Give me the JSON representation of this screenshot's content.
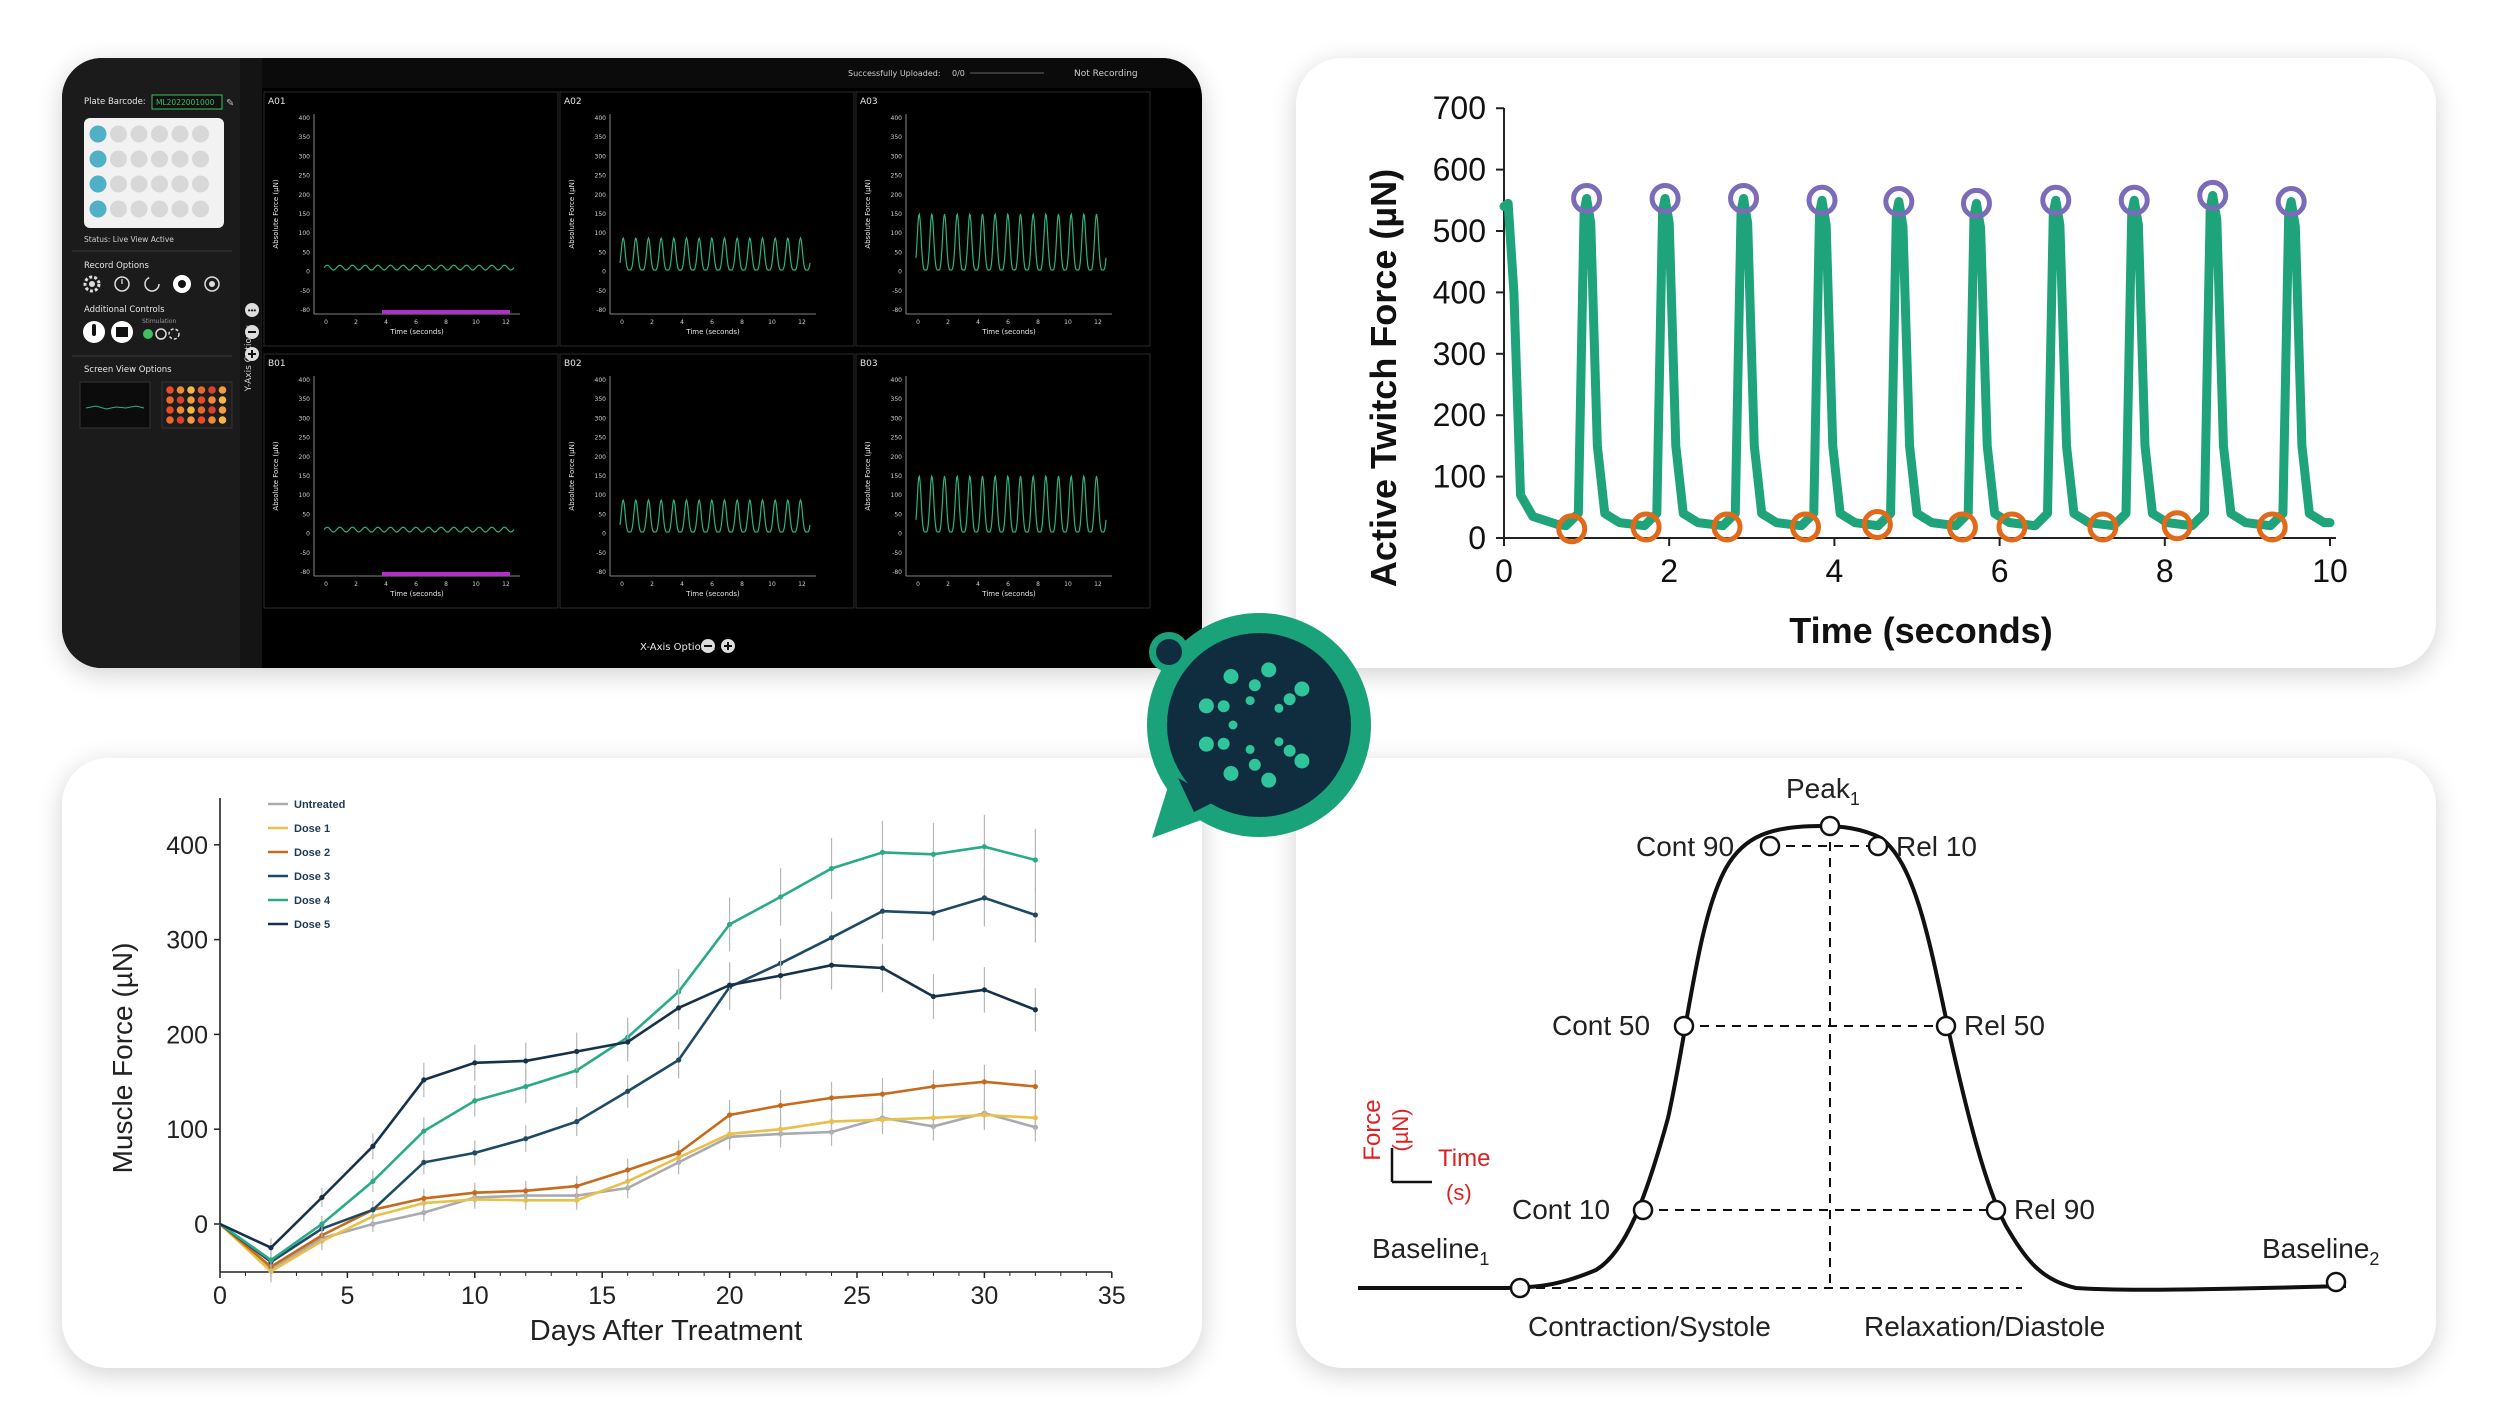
{
  "app": {
    "plate_barcode_label": "Plate Barcode:",
    "plate_barcode_value": "ML2022001000",
    "status_text": "Status: Live View Active",
    "upload_text": "Successfully Uploaded:",
    "upload_count": "0/0",
    "recording_status": "Not Recording",
    "record_options_label": "Record Options",
    "additional_controls_label": "Additional Controls",
    "stimulation_label": "Stimulation",
    "screen_view_label": "Screen View Options",
    "y_axis_options_label": "Y-Axis Options:",
    "x_axis_options_label": "X-Axis Options:",
    "wells": [
      {
        "id": "A01",
        "amp": 6
      },
      {
        "id": "A02",
        "amp": 40
      },
      {
        "id": "A03",
        "amp": 70
      },
      {
        "id": "B01",
        "amp": 6
      },
      {
        "id": "B02",
        "amp": 40
      },
      {
        "id": "B03",
        "amp": 70
      }
    ],
    "mini_plot": {
      "ylabel": "Absolute Force (µN)",
      "xlabel": "Time (seconds)",
      "yticks": [
        "400",
        "350",
        "300",
        "250",
        "200",
        "150",
        "100",
        "50",
        "0",
        "-50",
        "-80"
      ],
      "xticks": [
        "0",
        "2",
        "4",
        "6",
        "8",
        "10",
        "12"
      ]
    },
    "colors": {
      "trace": "#2db37a",
      "stim": "#b030c8",
      "well_active": "#4fb0c6",
      "well_idle": "#d8d8d8"
    }
  },
  "twitch_chart": {
    "chart_data": {
      "type": "line",
      "ylabel": "Active Twitch Force (µN)",
      "xlabel": "Time (seconds)",
      "ylim": [
        0,
        700
      ],
      "xlim": [
        0,
        10
      ],
      "yticks": [
        "0",
        "100",
        "200",
        "300",
        "400",
        "500",
        "600",
        "700"
      ],
      "xticks": [
        "0",
        "2",
        "4",
        "6",
        "8",
        "10"
      ],
      "peaks": [
        [
          1.0,
          553
        ],
        [
          1.95,
          553
        ],
        [
          2.9,
          553
        ],
        [
          3.85,
          550
        ],
        [
          4.78,
          548
        ],
        [
          5.72,
          545
        ],
        [
          6.68,
          550
        ],
        [
          7.63,
          550
        ],
        [
          8.58,
          558
        ],
        [
          9.53,
          548
        ]
      ],
      "troughs": [
        [
          0.82,
          15
        ],
        [
          1.72,
          18
        ],
        [
          2.7,
          18
        ],
        [
          3.65,
          18
        ],
        [
          4.52,
          22
        ],
        [
          5.55,
          18
        ],
        [
          6.15,
          18
        ],
        [
          7.25,
          18
        ],
        [
          8.15,
          20
        ],
        [
          9.3,
          18
        ]
      ],
      "line_color": "#1fa37a",
      "peak_marker_color": "#7b6bb8",
      "trough_marker_color": "#e06a1a"
    }
  },
  "dose_chart": {
    "chart_data": {
      "type": "line",
      "ylabel": "Muscle Force (µN)",
      "xlabel": "Days After Treatment",
      "xlim": [
        0,
        35
      ],
      "ylim": [
        -50,
        420
      ],
      "xticks": [
        "0",
        "5",
        "10",
        "15",
        "20",
        "25",
        "30",
        "35"
      ],
      "yticks": [
        "0",
        "100",
        "200",
        "300",
        "400"
      ],
      "x": [
        0,
        2,
        4,
        6,
        8,
        10,
        12,
        14,
        16,
        18,
        20,
        22,
        24,
        26,
        28,
        30,
        32
      ],
      "series": [
        {
          "name": "Untreated",
          "color": "#a9aab0",
          "values": [
            0,
            -48,
            -15,
            0,
            12,
            28,
            30,
            30,
            38,
            65,
            92,
            95,
            97,
            112,
            103,
            117,
            102
          ]
        },
        {
          "name": "Dose 1",
          "color": "#e8c04a",
          "values": [
            0,
            -50,
            -18,
            8,
            22,
            26,
            25,
            25,
            45,
            70,
            95,
            100,
            108,
            110,
            112,
            115,
            112
          ]
        },
        {
          "name": "Dose 2",
          "color": "#c76a1c",
          "values": [
            0,
            -45,
            -12,
            15,
            27,
            33,
            35,
            40,
            57,
            75,
            115,
            125,
            133,
            137,
            145,
            150,
            145
          ]
        },
        {
          "name": "Dose 3",
          "color": "#1e4a63",
          "values": [
            0,
            -40,
            -5,
            15,
            65,
            75,
            90,
            108,
            140,
            173,
            250,
            275,
            302,
            330,
            328,
            344,
            326
          ]
        },
        {
          "name": "Dose 4",
          "color": "#2aaa88",
          "values": [
            0,
            -38,
            0,
            45,
            98,
            130,
            145,
            162,
            197,
            245,
            316,
            345,
            375,
            392,
            390,
            398,
            384
          ]
        },
        {
          "name": "Dose 5",
          "color": "#16324a",
          "values": [
            0,
            -25,
            28,
            82,
            152,
            170,
            172,
            182,
            192,
            228,
            252,
            262,
            273,
            270,
            240,
            247,
            226
          ]
        }
      ]
    }
  },
  "waveform": {
    "labels": {
      "peak": "Peak",
      "peak_sub": "1",
      "cont90": "Cont 90",
      "rel10": "Rel 10",
      "cont50": "Cont 50",
      "rel50": "Rel 50",
      "cont10": "Cont 10",
      "rel90": "Rel 90",
      "baseline1": "Baseline",
      "baseline1_sub": "1",
      "baseline2": "Baseline",
      "baseline2_sub": "2",
      "contraction": "Contraction/Systole",
      "relaxation": "Relaxation/Diastole",
      "force_axis": "Force",
      "force_unit": "(µN)",
      "time_axis": "Time",
      "time_unit": "(s)"
    },
    "axis_color": "#e02020"
  },
  "logo": {
    "ring_color": "#1aa37a",
    "inner_color": "#0f2d3f",
    "dot_color": "#2fc49a"
  }
}
